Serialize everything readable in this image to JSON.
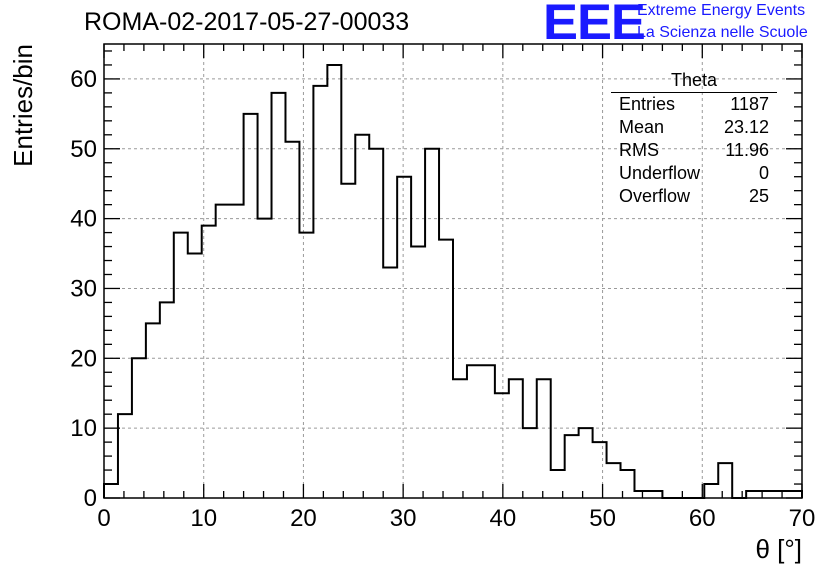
{
  "header": {
    "run_title": "ROMA-02-2017-05-27-00033"
  },
  "logo": {
    "mark": "EEE",
    "line1": "Extreme Energy Events",
    "line2": "La Scienza nelle Scuole",
    "color": "#1a1aff"
  },
  "stats_box": {
    "title": "Theta",
    "rows": [
      {
        "label": "Entries",
        "value": "1187"
      },
      {
        "label": "Mean",
        "value": "23.12"
      },
      {
        "label": "RMS",
        "value": "11.96"
      },
      {
        "label": "Underflow",
        "value": "0"
      },
      {
        "label": "Overflow",
        "value": "25"
      }
    ]
  },
  "chart_data": {
    "type": "histogram",
    "title": "ROMA-02-2017-05-27-00033",
    "xlabel": "θ [°]",
    "ylabel": "Entries/bin",
    "xlim": [
      0,
      70
    ],
    "ylim": [
      0,
      65
    ],
    "x_ticks": [
      0,
      10,
      20,
      30,
      40,
      50,
      60,
      70
    ],
    "y_ticks": [
      0,
      10,
      20,
      30,
      40,
      50,
      60
    ],
    "grid": true,
    "bin_width": 1.4,
    "bin_edges_start": 0,
    "values": [
      2,
      12,
      20,
      25,
      28,
      38,
      35,
      39,
      42,
      42,
      55,
      40,
      58,
      51,
      38,
      59,
      62,
      45,
      52,
      50,
      33,
      46,
      36,
      50,
      37,
      17,
      19,
      19,
      15,
      17,
      10,
      17,
      4,
      9,
      10,
      8,
      5,
      4,
      1,
      1,
      0,
      0,
      0,
      2,
      5,
      0,
      1,
      1,
      1,
      1
    ]
  }
}
